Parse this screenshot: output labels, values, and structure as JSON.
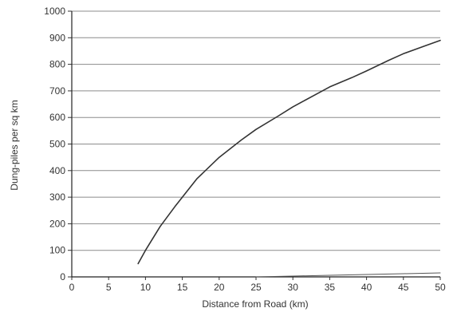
{
  "chart_data": {
    "type": "line",
    "title": "",
    "xlabel": "Distance from Road (km)",
    "ylabel": "Dung-piles per sq km",
    "xlim": [
      0,
      50
    ],
    "ylim": [
      0,
      1000
    ],
    "xticks": [
      0,
      5,
      10,
      15,
      20,
      25,
      30,
      35,
      40,
      45,
      50
    ],
    "yticks": [
      0,
      100,
      200,
      300,
      400,
      500,
      600,
      700,
      800,
      900,
      1000
    ],
    "grid": {
      "horizontal": true,
      "vertical": false
    },
    "legend": "none",
    "series": [
      {
        "x": [
          9,
          10,
          12,
          14,
          15,
          17,
          20,
          23,
          25,
          28,
          30,
          33,
          35,
          38,
          40,
          43,
          45,
          48,
          50
        ],
        "values": [
          50,
          100,
          190,
          265,
          300,
          370,
          450,
          515,
          555,
          605,
          640,
          685,
          715,
          750,
          775,
          815,
          840,
          870,
          890
        ],
        "color": "#333333"
      },
      {
        "x": [
          25,
          30,
          35,
          40,
          45,
          50
        ],
        "values": [
          0,
          3,
          6,
          9,
          12,
          15
        ],
        "color": "#555555"
      }
    ]
  }
}
